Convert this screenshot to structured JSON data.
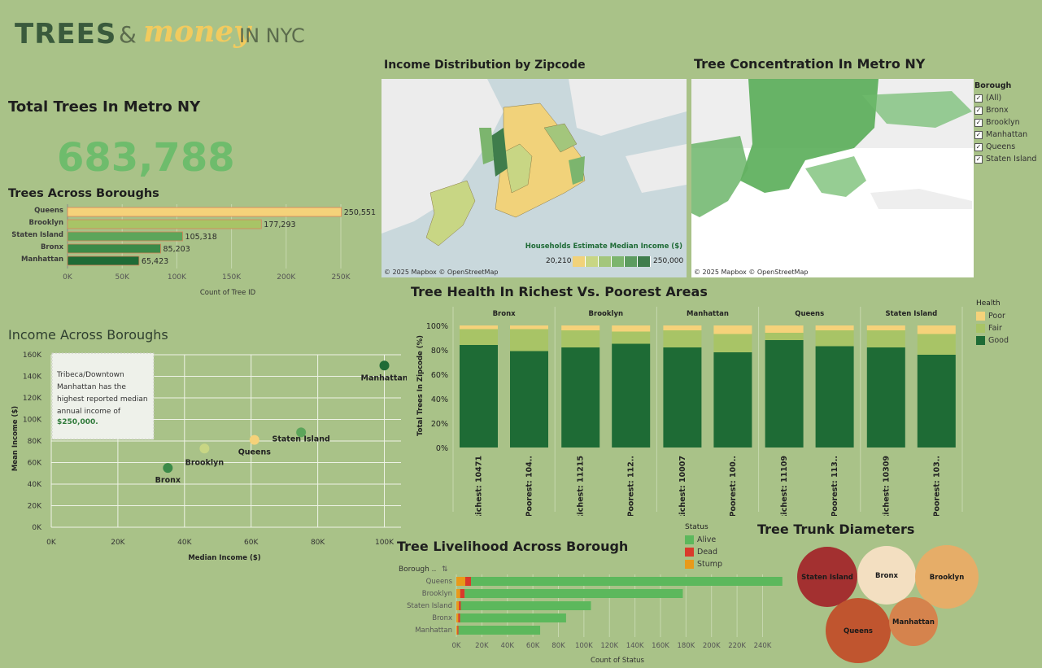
{
  "logo": {
    "trees": "TREES",
    "amp": "&",
    "money": "money",
    "nyc": "IN NYC"
  },
  "total": {
    "title": "Total Trees In Metro NY",
    "value": "683,788"
  },
  "income_map": {
    "title": "Income Distribution by Zipcode",
    "legend_title": "Households Estimate Median Income ($)",
    "min": "20,210",
    "max": "250,000",
    "credit": "© 2025 Mapbox  © OpenStreetMap",
    "scale_colors": [
      "#f1d27a",
      "#c8d684",
      "#a3c67c",
      "#7cb56e",
      "#5c9c60",
      "#3f7d4c"
    ]
  },
  "tree_map": {
    "title": "Tree Concentration In Metro NY",
    "credit": "© 2025 Mapbox  © OpenStreetMap"
  },
  "borough_filter": {
    "title": "Borough",
    "items": [
      "(All)",
      "Bronx",
      "Brooklyn",
      "Manhattan",
      "Queens",
      "Staten Island"
    ]
  },
  "colors": {
    "queens": "#f5d27a",
    "brooklyn": "#a8c466",
    "staten_island": "#5ca55a",
    "bronx": "#3b8a48",
    "manhattan": "#1f6b36",
    "alive": "#5cb85c",
    "dead": "#d93a2b",
    "stump": "#e89a1a",
    "good": "#1e6b35",
    "fair": "#a8c466",
    "poor": "#f5d27a"
  },
  "chart_data": [
    {
      "id": "trees_across_boroughs",
      "type": "bar",
      "title": "Trees Across Boroughs",
      "categories": [
        "Queens",
        "Brooklyn",
        "Staten Island",
        "Bronx",
        "Manhattan"
      ],
      "values": [
        250551,
        177293,
        105318,
        85203,
        65423
      ],
      "labels": [
        "250,551",
        "177,293",
        "105,318",
        "85,203",
        "65,423"
      ],
      "xlabel": "Count of Tree ID",
      "xticks": [
        "0K",
        "50K",
        "100K",
        "150K",
        "200K",
        "250K"
      ],
      "xlim": [
        0,
        250000
      ]
    },
    {
      "id": "income_across_boroughs",
      "type": "scatter",
      "title": "Income Across Boroughs",
      "xlabel": "Median Income ($)",
      "ylabel": "Mean Income ($)",
      "xticks": [
        "0K",
        "20K",
        "40K",
        "60K",
        "80K",
        "100K"
      ],
      "yticks": [
        "0K",
        "20K",
        "40K",
        "60K",
        "80K",
        "100K",
        "120K",
        "140K",
        "160K"
      ],
      "xlim": [
        0,
        105000
      ],
      "ylim": [
        0,
        160000
      ],
      "points": [
        {
          "name": "Bronx",
          "x": 35000,
          "y": 55000,
          "color": "#3b8a48"
        },
        {
          "name": "Brooklyn",
          "x": 46000,
          "y": 73000,
          "color": "#c8d684"
        },
        {
          "name": "Queens",
          "x": 61000,
          "y": 81000,
          "color": "#f5d27a"
        },
        {
          "name": "Staten Island",
          "x": 75000,
          "y": 88000,
          "color": "#5ca55a"
        },
        {
          "name": "Manhattan",
          "x": 100000,
          "y": 150000,
          "color": "#1f6b36"
        }
      ],
      "annotation": {
        "text": "Tribeca/Downtown Manhattan has the highest reported median annual income of",
        "highlight": "$250,000."
      }
    },
    {
      "id": "tree_health",
      "type": "bar",
      "title": "Tree Health In Richest Vs. Poorest Areas",
      "ylabel": "Total Trees In Zipcode (%)",
      "yticks": [
        "0%",
        "20%",
        "40%",
        "60%",
        "80%",
        "100%"
      ],
      "legend_title": "Health",
      "legend": [
        "Poor",
        "Fair",
        "Good"
      ],
      "groups": [
        {
          "name": "Bronx",
          "bars": [
            {
              "label": "Richest: 10471",
              "good": 84,
              "fair": 13,
              "poor": 3
            },
            {
              "label": "Poorest: 104..",
              "good": 79,
              "fair": 18,
              "poor": 3
            }
          ]
        },
        {
          "name": "Brooklyn",
          "bars": [
            {
              "label": "Richest: 11215",
              "good": 82,
              "fair": 14,
              "poor": 4
            },
            {
              "label": "Poorest: 112..",
              "good": 85,
              "fair": 10,
              "poor": 5
            }
          ]
        },
        {
          "name": "Manhattan",
          "bars": [
            {
              "label": "Richest: 10007",
              "good": 82,
              "fair": 14,
              "poor": 4
            },
            {
              "label": "Poorest: 100..",
              "good": 78,
              "fair": 15,
              "poor": 7
            }
          ]
        },
        {
          "name": "Queens",
          "bars": [
            {
              "label": "Richest: 11109",
              "good": 88,
              "fair": 6,
              "poor": 6
            },
            {
              "label": "Poorest: 113..",
              "good": 83,
              "fair": 13,
              "poor": 4
            }
          ]
        },
        {
          "name": "Staten Island",
          "bars": [
            {
              "label": "Richest: 10309",
              "good": 82,
              "fair": 14,
              "poor": 4
            },
            {
              "label": "Poorest: 103..",
              "good": 76,
              "fair": 17,
              "poor": 7
            }
          ]
        }
      ]
    },
    {
      "id": "tree_livelihood",
      "type": "bar",
      "title": "Tree Livelihood Across Borough",
      "axis_header": "Borough ..",
      "categories": [
        "Queens",
        "Brooklyn",
        "Staten Island",
        "Bronx",
        "Manhattan"
      ],
      "series": [
        {
          "name": "Stump",
          "values": [
            7000,
            3000,
            2000,
            1500,
            800
          ]
        },
        {
          "name": "Dead",
          "values": [
            4500,
            3500,
            1500,
            1500,
            900
          ]
        },
        {
          "name": "Alive",
          "values": [
            244000,
            171000,
            102000,
            83000,
            64000
          ]
        }
      ],
      "legend_title": "Status",
      "legend": [
        "Alive",
        "Dead",
        "Stump"
      ],
      "xlabel": "Count of Status",
      "xticks": [
        "0K",
        "20K",
        "40K",
        "60K",
        "80K",
        "100K",
        "120K",
        "140K",
        "160K",
        "180K",
        "200K",
        "220K",
        "240K"
      ],
      "xlim": [
        0,
        255000
      ]
    },
    {
      "id": "tree_trunk_diameters",
      "type": "bubble",
      "title": "Tree Trunk Diameters",
      "bubbles": [
        {
          "name": "Staten Island",
          "color": "#a33030",
          "text_color": "#1a1a1a"
        },
        {
          "name": "Bronx",
          "color": "#f3dfc1",
          "text_color": "#1a1a1a"
        },
        {
          "name": "Brooklyn",
          "color": "#e6ad68",
          "text_color": "#1a1a1a"
        },
        {
          "name": "Queens",
          "color": "#c0552f",
          "text_color": "#1a1a1a"
        },
        {
          "name": "Manhattan",
          "color": "#d5834d",
          "text_color": "#1a1a1a"
        }
      ]
    }
  ]
}
